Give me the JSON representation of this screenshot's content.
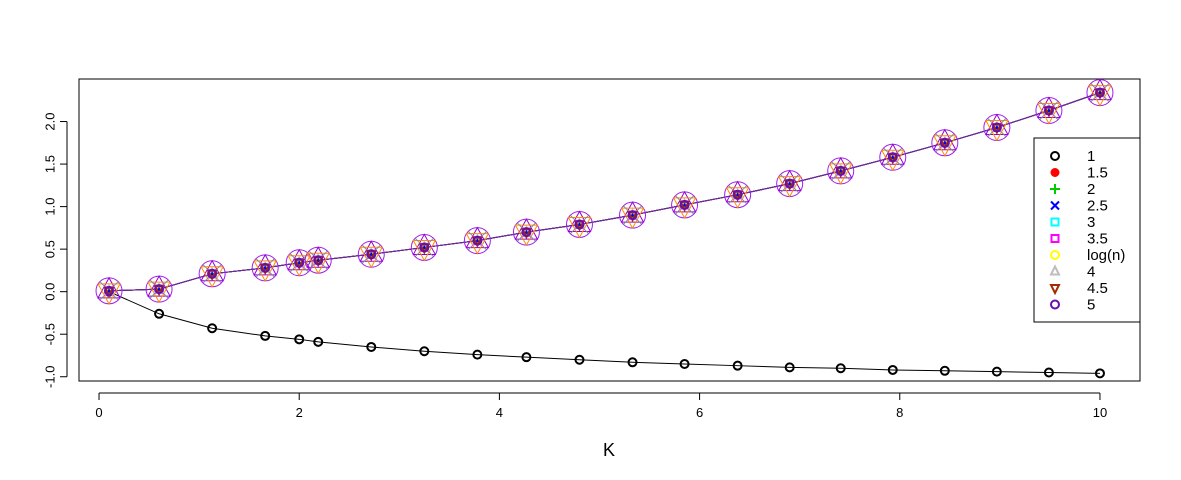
{
  "chart_data": {
    "type": "line",
    "title": "",
    "xlabel": "K",
    "ylabel": "",
    "xlim": [
      -0.2,
      10.4
    ],
    "ylim": [
      -1.05,
      2.5
    ],
    "xticks": [
      0,
      2,
      4,
      6,
      8,
      10
    ],
    "yticks": [
      -1.0,
      -0.5,
      0.0,
      0.5,
      1.0,
      1.5,
      2.0
    ],
    "x": [
      0.1,
      0.6,
      1.13,
      1.66,
      2.0,
      2.19,
      2.72,
      3.25,
      3.78,
      4.27,
      4.8,
      5.33,
      5.85,
      6.38,
      6.9,
      7.41,
      7.93,
      8.45,
      8.97,
      9.49,
      10.0
    ],
    "series": [
      {
        "name": "1",
        "color": "#000000",
        "marker": "circle-open",
        "values": [
          0.0,
          -0.26,
          -0.43,
          -0.52,
          -0.56,
          -0.59,
          -0.65,
          -0.7,
          -0.74,
          -0.77,
          -0.8,
          -0.83,
          -0.85,
          -0.87,
          -0.89,
          -0.9,
          -0.92,
          -0.93,
          -0.94,
          -0.95,
          -0.96
        ]
      },
      {
        "name": "1.5",
        "color": "#ff0000",
        "marker": "circle-filled",
        "values": [
          0.01,
          0.03,
          0.21,
          0.28,
          0.34,
          0.37,
          0.44,
          0.52,
          0.6,
          0.7,
          0.79,
          0.9,
          1.02,
          1.14,
          1.27,
          1.42,
          1.58,
          1.75,
          1.93,
          2.13,
          2.34
        ]
      },
      {
        "name": "2",
        "color": "#00cd00",
        "marker": "plus",
        "values": [
          0.01,
          0.03,
          0.21,
          0.28,
          0.34,
          0.37,
          0.44,
          0.52,
          0.6,
          0.7,
          0.79,
          0.9,
          1.02,
          1.14,
          1.27,
          1.42,
          1.58,
          1.75,
          1.93,
          2.13,
          2.34
        ]
      },
      {
        "name": "2.5",
        "color": "#0000ff",
        "marker": "cross",
        "values": [
          0.01,
          0.03,
          0.21,
          0.28,
          0.34,
          0.37,
          0.44,
          0.52,
          0.6,
          0.7,
          0.79,
          0.9,
          1.02,
          1.14,
          1.27,
          1.42,
          1.58,
          1.75,
          1.93,
          2.13,
          2.34
        ]
      },
      {
        "name": "3",
        "color": "#00ffff",
        "marker": "square-open",
        "values": [
          0.01,
          0.03,
          0.21,
          0.28,
          0.34,
          0.37,
          0.44,
          0.52,
          0.6,
          0.7,
          0.79,
          0.9,
          1.02,
          1.14,
          1.27,
          1.42,
          1.58,
          1.75,
          1.93,
          2.13,
          2.34
        ]
      },
      {
        "name": "3.5",
        "color": "#ff00ff",
        "marker": "square-open",
        "values": [
          0.01,
          0.03,
          0.21,
          0.28,
          0.34,
          0.37,
          0.44,
          0.52,
          0.6,
          0.7,
          0.79,
          0.9,
          1.02,
          1.14,
          1.27,
          1.42,
          1.58,
          1.75,
          1.93,
          2.13,
          2.34
        ]
      },
      {
        "name": "log(n)",
        "color": "#ffff00",
        "marker": "circle-open",
        "values": [
          0.01,
          0.03,
          0.21,
          0.28,
          0.34,
          0.37,
          0.44,
          0.52,
          0.6,
          0.7,
          0.79,
          0.9,
          1.02,
          1.14,
          1.27,
          1.42,
          1.58,
          1.75,
          1.93,
          2.13,
          2.34
        ]
      },
      {
        "name": "4",
        "color": "#bebebe",
        "marker": "triangle-up",
        "values": [
          0.01,
          0.03,
          0.21,
          0.28,
          0.34,
          0.37,
          0.44,
          0.52,
          0.6,
          0.7,
          0.79,
          0.9,
          1.02,
          1.14,
          1.27,
          1.42,
          1.58,
          1.75,
          1.93,
          2.13,
          2.34
        ]
      },
      {
        "name": "4.5",
        "color": "#a52a00",
        "marker": "triangle-down",
        "values": [
          0.01,
          0.03,
          0.21,
          0.28,
          0.34,
          0.37,
          0.44,
          0.52,
          0.6,
          0.7,
          0.79,
          0.9,
          1.02,
          1.14,
          1.27,
          1.42,
          1.58,
          1.75,
          1.93,
          2.13,
          2.34
        ]
      },
      {
        "name": "5",
        "color": "#6a0dad",
        "marker": "circle-open",
        "values": [
          0.01,
          0.03,
          0.21,
          0.28,
          0.34,
          0.37,
          0.44,
          0.52,
          0.6,
          0.7,
          0.79,
          0.9,
          1.02,
          1.14,
          1.27,
          1.42,
          1.58,
          1.75,
          1.93,
          2.13,
          2.34
        ]
      }
    ],
    "overlay_markers": [
      "circle-large-purple",
      "triangle-up-purple",
      "triangle-down-orange",
      "cross-gray"
    ],
    "legend_position": "right",
    "grid": false
  }
}
